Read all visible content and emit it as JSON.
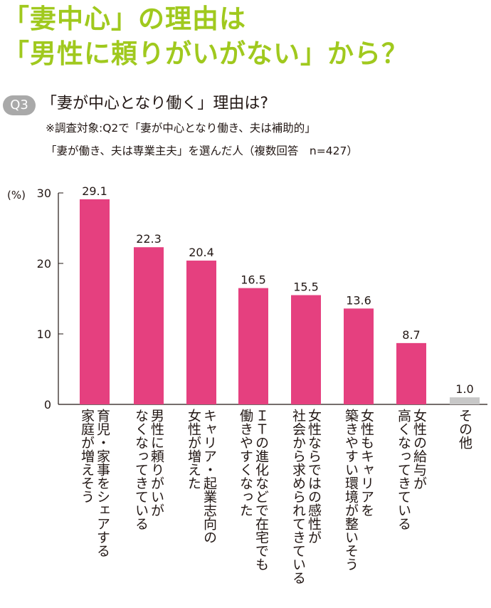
{
  "colors": {
    "headline": "#a0c91e",
    "bar": "#e5407f",
    "bar_other": "#c8c8c8",
    "text": "#231815",
    "badge": "#a9a9a9"
  },
  "headline": {
    "line1": "「妻中心」の理由は",
    "line2": "「男性に頼りがいがない」から？"
  },
  "question": {
    "badge": "Q3",
    "text": "「妻が中心となり働く」理由は?",
    "note_line1": "※調査対象:Q2で「妻が中心となり働き、夫は補助的」",
    "note_line2": "「妻が働き、夫は専業主夫」を選んだ人（複数回答　n=427）"
  },
  "chart_data": {
    "type": "bar",
    "unit_label": "(%)",
    "yticks": [
      "0",
      "10",
      "20",
      "30"
    ],
    "ylim": [
      0,
      30
    ],
    "categories": [
      "育児・家事をシェアする\n家庭が増えそう",
      "男性に頼りがいが\nなくなってきている",
      "キャリア・起業志向の\n女性が増えた",
      "ＩＴの進化などで在宅でも\n働きやすくなった",
      "女性ならではの感性が\n社会から求められてきている",
      "女性もキャリアを\n築きやすい環境が整いそう",
      "女性の給与が\n高くなってきている",
      "その他"
    ],
    "values": [
      29.1,
      22.3,
      20.4,
      16.5,
      15.5,
      13.6,
      8.7,
      1.0
    ],
    "value_labels": [
      "29.1",
      "22.3",
      "20.4",
      "16.5",
      "15.5",
      "13.6",
      "8.7",
      "1.0"
    ]
  }
}
